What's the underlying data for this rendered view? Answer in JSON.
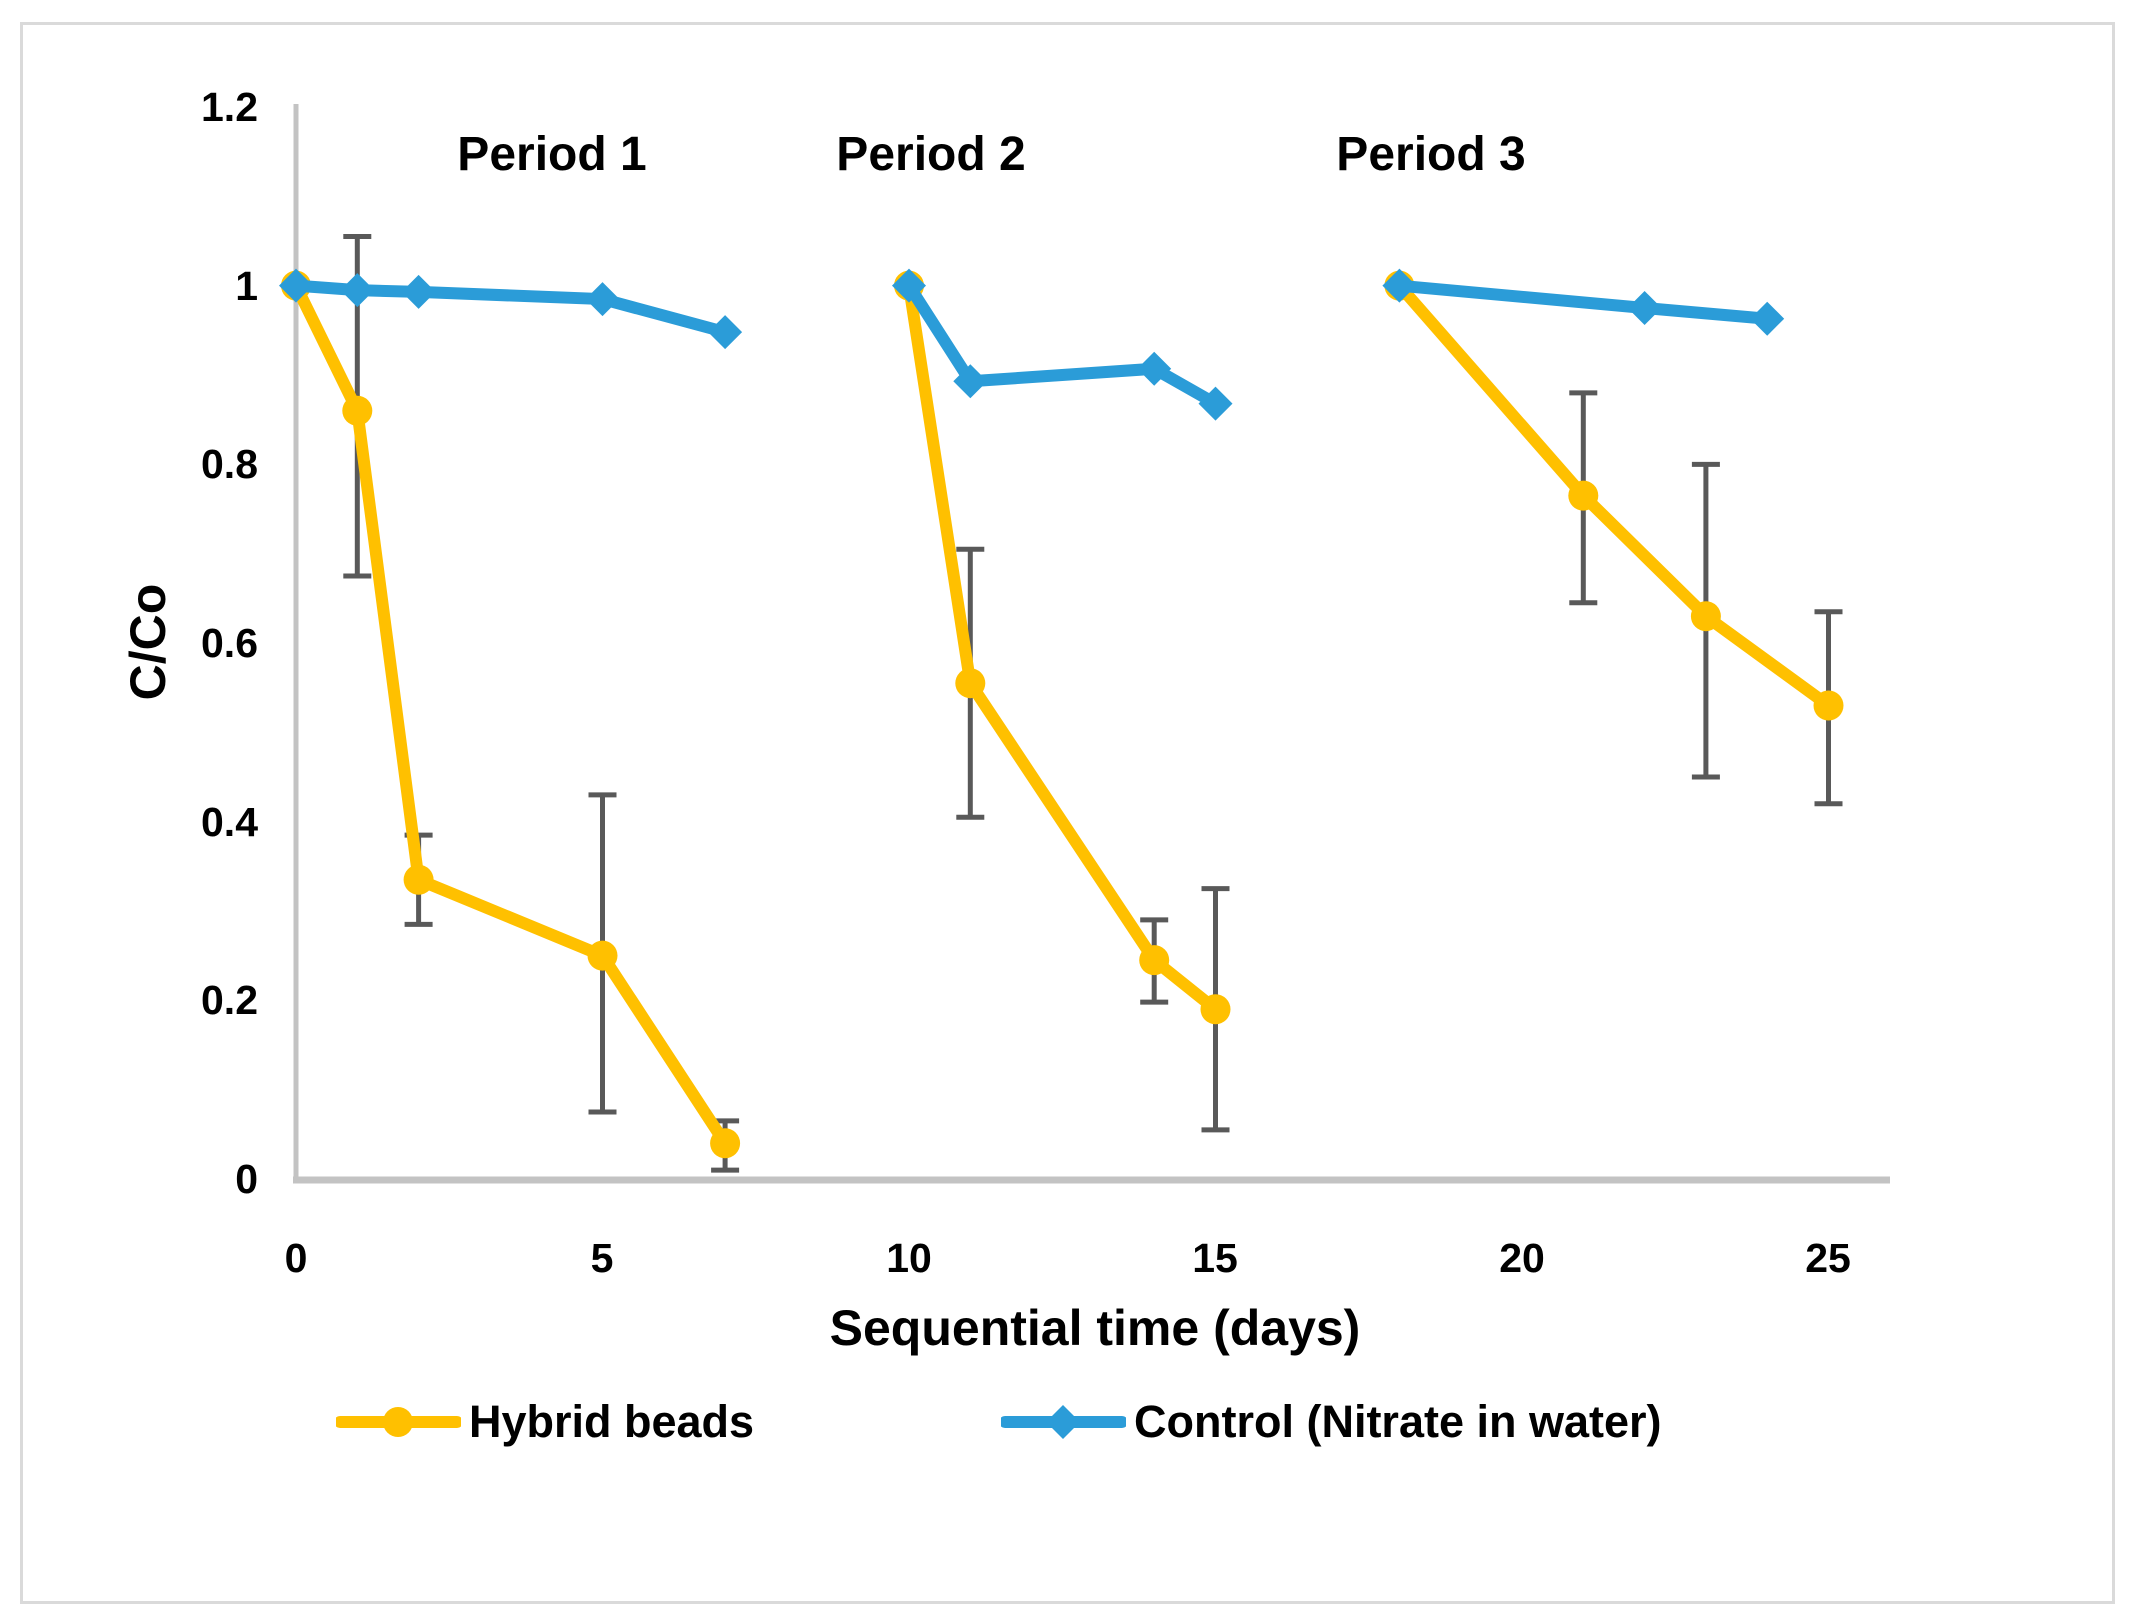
{
  "figure": {
    "background": "#FFFFFF",
    "border_color": "#DADADA"
  },
  "chart_data": {
    "type": "line",
    "title": "",
    "xlabel": "Sequential time (days)",
    "ylabel": "C/Co",
    "xlim": [
      0,
      26
    ],
    "ylim": [
      0,
      1.2
    ],
    "grid": "off",
    "legend_position": "bottom",
    "xticks": [
      "0",
      "5",
      "10",
      "15",
      "20",
      "25"
    ],
    "xtick_values": [
      0,
      5,
      10,
      15,
      20,
      25
    ],
    "yticks": [
      "1.2",
      "1",
      "0.8",
      "0.6",
      "0.4",
      "0.2",
      "0"
    ],
    "ytick_values": [
      1.2,
      1.0,
      0.8,
      0.6,
      0.4,
      0.2,
      0
    ],
    "period_labels": [
      {
        "label": "Period 1",
        "x": 4.2
      },
      {
        "label": "Period 2",
        "x": 10.3
      },
      {
        "label": "Period 3",
        "x": 18.4
      }
    ],
    "error_bar_color": "#595959",
    "axis_color": "#C3C3C3",
    "series": [
      {
        "name": "Hybrid beads",
        "color": "#FFC000",
        "marker": "circle",
        "periods": [
          [
            {
              "x": 0,
              "y": 1.0
            },
            {
              "x": 1,
              "y": 0.86,
              "lo": 0.675,
              "hi": 1.055
            },
            {
              "x": 2,
              "y": 0.335,
              "lo": 0.285,
              "hi": 0.385
            },
            {
              "x": 5,
              "y": 0.25,
              "lo": 0.075,
              "hi": 0.43
            },
            {
              "x": 7,
              "y": 0.04,
              "lo": 0.01,
              "hi": 0.065
            }
          ],
          [
            {
              "x": 10,
              "y": 1.0
            },
            {
              "x": 11,
              "y": 0.555,
              "lo": 0.405,
              "hi": 0.705
            },
            {
              "x": 14,
              "y": 0.245,
              "lo": 0.198,
              "hi": 0.29
            },
            {
              "x": 15,
              "y": 0.19,
              "lo": 0.055,
              "hi": 0.325
            }
          ],
          [
            {
              "x": 18,
              "y": 1.0
            },
            {
              "x": 21,
              "y": 0.765,
              "lo": 0.645,
              "hi": 0.88
            },
            {
              "x": 23,
              "y": 0.63,
              "lo": 0.45,
              "hi": 0.8
            },
            {
              "x": 25,
              "y": 0.53,
              "lo": 0.42,
              "hi": 0.635
            }
          ]
        ]
      },
      {
        "name": "Control (Nitrate in water)",
        "color": "#2B9CD8",
        "marker": "diamond",
        "periods": [
          [
            {
              "x": 0,
              "y": 1.0
            },
            {
              "x": 1,
              "y": 0.995
            },
            {
              "x": 2,
              "y": 0.993
            },
            {
              "x": 5,
              "y": 0.985
            },
            {
              "x": 7,
              "y": 0.948
            }
          ],
          [
            {
              "x": 10,
              "y": 1.0
            },
            {
              "x": 11,
              "y": 0.893
            },
            {
              "x": 14,
              "y": 0.907
            },
            {
              "x": 15,
              "y": 0.868
            }
          ],
          [
            {
              "x": 18,
              "y": 1.0
            },
            {
              "x": 22,
              "y": 0.975
            },
            {
              "x": 24,
              "y": 0.963
            }
          ]
        ]
      }
    ]
  },
  "legend": {
    "items": [
      {
        "label": "Hybrid beads"
      },
      {
        "label": "Control (Nitrate in water)"
      }
    ]
  }
}
